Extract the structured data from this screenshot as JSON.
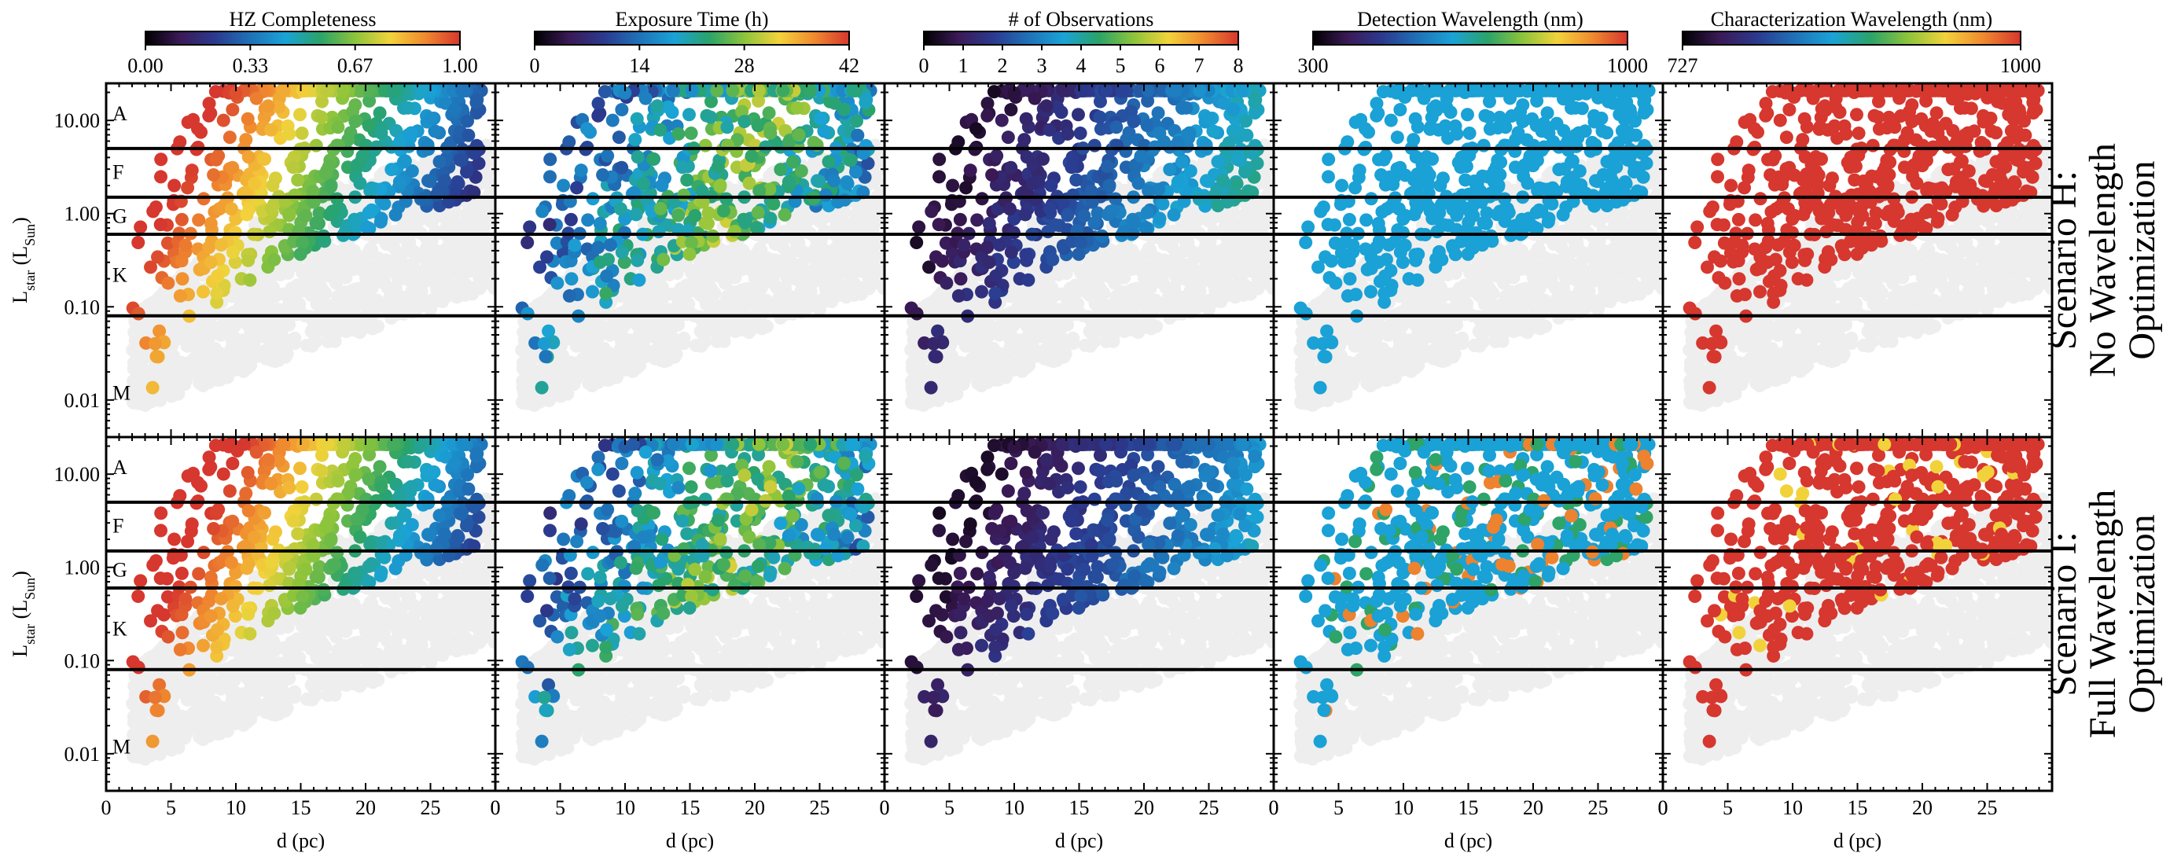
{
  "chart_data": {
    "type": "scatter",
    "panel_columns": [
      {
        "colorbar_title": "HZ Completeness",
        "ticks": [
          "0.00",
          "0.33",
          "0.67",
          "1.00"
        ],
        "range": [
          0,
          1
        ],
        "colormap": "spectral_dark"
      },
      {
        "colorbar_title": "Exposure Time (h)",
        "ticks": [
          "0",
          "14",
          "28",
          "42"
        ],
        "range": [
          0,
          42
        ],
        "colormap": "spectral_dark"
      },
      {
        "colorbar_title": "# of Observations",
        "ticks": [
          "0",
          "1",
          "2",
          "3",
          "4",
          "5",
          "6",
          "7",
          "8"
        ],
        "range": [
          0,
          8
        ],
        "colormap": "spectral_dark"
      },
      {
        "colorbar_title": "Detection Wavelength (nm)",
        "ticks": [
          "300",
          "1000"
        ],
        "range": [
          300,
          1000
        ],
        "colormap": "spectral_dark"
      },
      {
        "colorbar_title": "Characterization Wavelength (nm)",
        "ticks": [
          "727",
          "1000"
        ],
        "range": [
          727,
          1000
        ],
        "colormap": "spectral_dark"
      }
    ],
    "rows": [
      {
        "label_lines": [
          "Scenario H:",
          "No Wavelength",
          "Optimization"
        ]
      },
      {
        "label_lines": [
          "Scenario I:",
          "Full Wavelength",
          "Optimization"
        ]
      }
    ],
    "x_axis": {
      "label": "d (pc)",
      "range": [
        0,
        30
      ],
      "ticks": [
        "0",
        "5",
        "10",
        "15",
        "20",
        "25",
        "0"
      ],
      "last_panel_ticks": [
        "0",
        "5",
        "10",
        "15",
        "20",
        "25"
      ]
    },
    "y_axis": {
      "label": "L",
      "label_sub": "star",
      "label_unit_open": " (L",
      "label_unit_sub": "Sun",
      "label_unit_close": ")",
      "scale": "log",
      "range": [
        0.004,
        25
      ],
      "ticks": [
        "10.00",
        "1.00",
        "0.10",
        "0.01"
      ]
    },
    "spectral_type_boundaries_lsun": [
      5.0,
      1.5,
      0.6,
      0.08
    ],
    "spectral_type_labels": [
      "A",
      "F",
      "G",
      "K",
      "M"
    ],
    "series_note": "Colored points: selected targets (d, L) colored by panel quantity; grey points: background stars not selected.",
    "colormap_stops": [
      "#000000",
      "#3b1a57",
      "#2b3a8f",
      "#1f72b8",
      "#1aa3d6",
      "#2aa36a",
      "#8cc43b",
      "#f2d33b",
      "#f08a2f",
      "#d6372e"
    ]
  }
}
